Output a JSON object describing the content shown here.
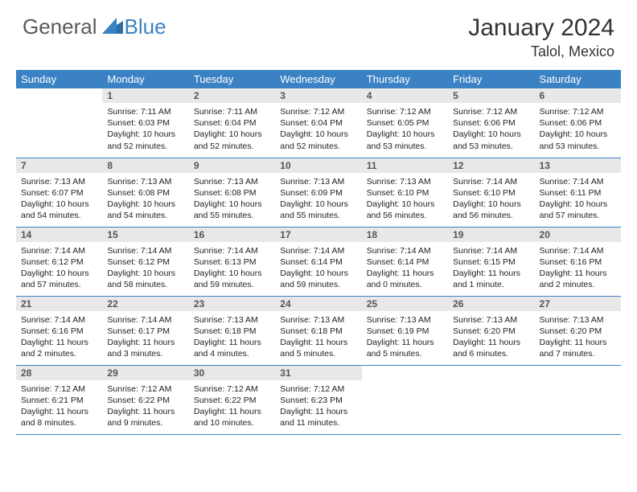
{
  "brand": {
    "word1": "General",
    "word2": "Blue"
  },
  "title": "January 2024",
  "location": "Talol, Mexico",
  "colors": {
    "header_bg": "#3b82c4",
    "header_text": "#ffffff",
    "daynum_bg": "#e8e8e8",
    "daynum_text": "#555555",
    "rule": "#3b82c4",
    "logo_gray": "#5a5a5a",
    "logo_blue": "#3b82c4"
  },
  "weekdays": [
    "Sunday",
    "Monday",
    "Tuesday",
    "Wednesday",
    "Thursday",
    "Friday",
    "Saturday"
  ],
  "leading_blanks": 1,
  "days": [
    {
      "n": 1,
      "sunrise": "7:11 AM",
      "sunset": "6:03 PM",
      "daylight": "10 hours and 52 minutes."
    },
    {
      "n": 2,
      "sunrise": "7:11 AM",
      "sunset": "6:04 PM",
      "daylight": "10 hours and 52 minutes."
    },
    {
      "n": 3,
      "sunrise": "7:12 AM",
      "sunset": "6:04 PM",
      "daylight": "10 hours and 52 minutes."
    },
    {
      "n": 4,
      "sunrise": "7:12 AM",
      "sunset": "6:05 PM",
      "daylight": "10 hours and 53 minutes."
    },
    {
      "n": 5,
      "sunrise": "7:12 AM",
      "sunset": "6:06 PM",
      "daylight": "10 hours and 53 minutes."
    },
    {
      "n": 6,
      "sunrise": "7:12 AM",
      "sunset": "6:06 PM",
      "daylight": "10 hours and 53 minutes."
    },
    {
      "n": 7,
      "sunrise": "7:13 AM",
      "sunset": "6:07 PM",
      "daylight": "10 hours and 54 minutes."
    },
    {
      "n": 8,
      "sunrise": "7:13 AM",
      "sunset": "6:08 PM",
      "daylight": "10 hours and 54 minutes."
    },
    {
      "n": 9,
      "sunrise": "7:13 AM",
      "sunset": "6:08 PM",
      "daylight": "10 hours and 55 minutes."
    },
    {
      "n": 10,
      "sunrise": "7:13 AM",
      "sunset": "6:09 PM",
      "daylight": "10 hours and 55 minutes."
    },
    {
      "n": 11,
      "sunrise": "7:13 AM",
      "sunset": "6:10 PM",
      "daylight": "10 hours and 56 minutes."
    },
    {
      "n": 12,
      "sunrise": "7:14 AM",
      "sunset": "6:10 PM",
      "daylight": "10 hours and 56 minutes."
    },
    {
      "n": 13,
      "sunrise": "7:14 AM",
      "sunset": "6:11 PM",
      "daylight": "10 hours and 57 minutes."
    },
    {
      "n": 14,
      "sunrise": "7:14 AM",
      "sunset": "6:12 PM",
      "daylight": "10 hours and 57 minutes."
    },
    {
      "n": 15,
      "sunrise": "7:14 AM",
      "sunset": "6:12 PM",
      "daylight": "10 hours and 58 minutes."
    },
    {
      "n": 16,
      "sunrise": "7:14 AM",
      "sunset": "6:13 PM",
      "daylight": "10 hours and 59 minutes."
    },
    {
      "n": 17,
      "sunrise": "7:14 AM",
      "sunset": "6:14 PM",
      "daylight": "10 hours and 59 minutes."
    },
    {
      "n": 18,
      "sunrise": "7:14 AM",
      "sunset": "6:14 PM",
      "daylight": "11 hours and 0 minutes."
    },
    {
      "n": 19,
      "sunrise": "7:14 AM",
      "sunset": "6:15 PM",
      "daylight": "11 hours and 1 minute."
    },
    {
      "n": 20,
      "sunrise": "7:14 AM",
      "sunset": "6:16 PM",
      "daylight": "11 hours and 2 minutes."
    },
    {
      "n": 21,
      "sunrise": "7:14 AM",
      "sunset": "6:16 PM",
      "daylight": "11 hours and 2 minutes."
    },
    {
      "n": 22,
      "sunrise": "7:14 AM",
      "sunset": "6:17 PM",
      "daylight": "11 hours and 3 minutes."
    },
    {
      "n": 23,
      "sunrise": "7:13 AM",
      "sunset": "6:18 PM",
      "daylight": "11 hours and 4 minutes."
    },
    {
      "n": 24,
      "sunrise": "7:13 AM",
      "sunset": "6:18 PM",
      "daylight": "11 hours and 5 minutes."
    },
    {
      "n": 25,
      "sunrise": "7:13 AM",
      "sunset": "6:19 PM",
      "daylight": "11 hours and 5 minutes."
    },
    {
      "n": 26,
      "sunrise": "7:13 AM",
      "sunset": "6:20 PM",
      "daylight": "11 hours and 6 minutes."
    },
    {
      "n": 27,
      "sunrise": "7:13 AM",
      "sunset": "6:20 PM",
      "daylight": "11 hours and 7 minutes."
    },
    {
      "n": 28,
      "sunrise": "7:12 AM",
      "sunset": "6:21 PM",
      "daylight": "11 hours and 8 minutes."
    },
    {
      "n": 29,
      "sunrise": "7:12 AM",
      "sunset": "6:22 PM",
      "daylight": "11 hours and 9 minutes."
    },
    {
      "n": 30,
      "sunrise": "7:12 AM",
      "sunset": "6:22 PM",
      "daylight": "11 hours and 10 minutes."
    },
    {
      "n": 31,
      "sunrise": "7:12 AM",
      "sunset": "6:23 PM",
      "daylight": "11 hours and 11 minutes."
    }
  ],
  "labels": {
    "sunrise": "Sunrise:",
    "sunset": "Sunset:",
    "daylight": "Daylight:"
  }
}
